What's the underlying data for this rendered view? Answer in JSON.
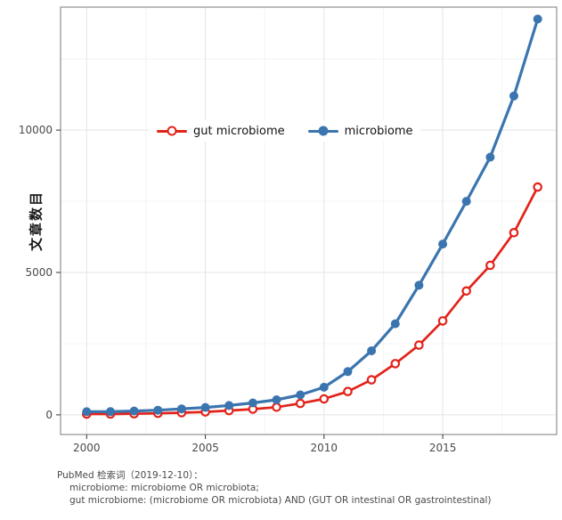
{
  "chart_data": {
    "type": "line",
    "title": "",
    "xlabel": "",
    "ylabel": "文章数目",
    "x": [
      2000,
      2001,
      2002,
      2003,
      2004,
      2005,
      2006,
      2007,
      2008,
      2009,
      2010,
      2011,
      2012,
      2013,
      2014,
      2015,
      2016,
      2017,
      2018,
      2019
    ],
    "series": [
      {
        "name": "gut microbiome",
        "color": "#e2231a",
        "marker": "open-circle",
        "values": [
          30,
          30,
          40,
          55,
          75,
          105,
          150,
          200,
          270,
          400,
          560,
          820,
          1230,
          1800,
          2450,
          3300,
          4350,
          5250,
          6400,
          8000
        ]
      },
      {
        "name": "microbiome",
        "color": "#3b75af",
        "marker": "filled-circle",
        "values": [
          110,
          115,
          135,
          165,
          210,
          260,
          330,
          420,
          530,
          700,
          970,
          1520,
          2250,
          3200,
          4550,
          6000,
          7500,
          9050,
          11200,
          13900
        ]
      }
    ],
    "x_ticks": [
      2000,
      2005,
      2010,
      2015
    ],
    "y_ticks": [
      0,
      5000,
      10000
    ],
    "x_minor_ticks": [
      2002.5,
      2007.5,
      2012.5,
      2017.5
    ],
    "y_minor_ticks": [
      2500,
      7500,
      12500
    ],
    "xlim": [
      1998.9,
      2019.8
    ],
    "ylim": [
      -690,
      14320
    ],
    "grid": true,
    "legend_position": "top-center-inside"
  },
  "caption": {
    "line1": "PubMed 检索词（2019-12-10）：",
    "line2": "microbiome: microbiome OR microbiota;",
    "line3": "gut microbiome: (microbiome OR microbiota) AND (GUT OR intestinal OR gastrointestinal)"
  }
}
